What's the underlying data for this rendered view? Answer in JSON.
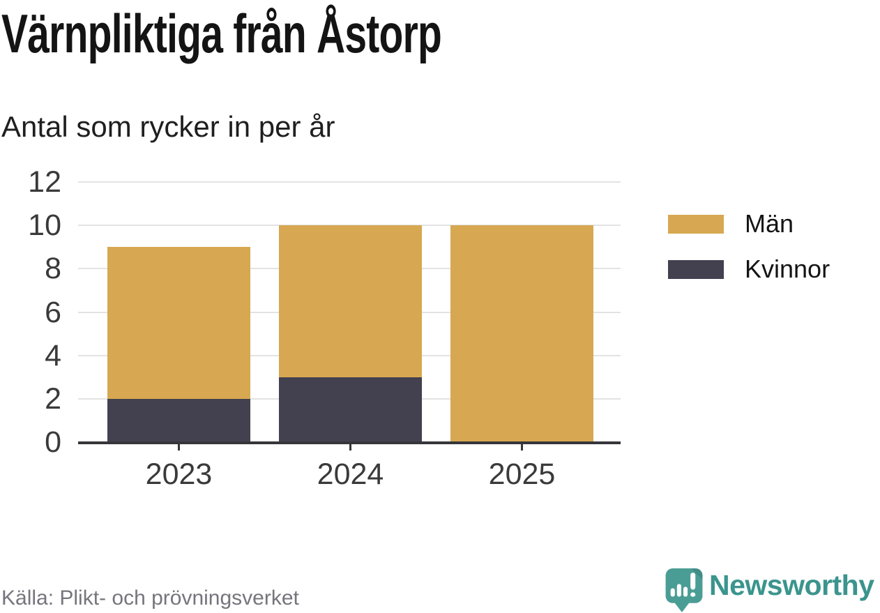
{
  "header": {
    "title": "Värnpliktiga från Åstorp",
    "subtitle": "Antal som rycker in per år"
  },
  "footer": {
    "source": "Källa: Plikt- och prövningsverket",
    "brand": "Newsworthy",
    "brand_icon": "newsworthy-speech-bubble-bar-chart-icon"
  },
  "colors": {
    "men": "#d7a851",
    "women": "#43404f",
    "grid": "#e3e3e3",
    "axis": "#36363a",
    "title_text": "#141414",
    "tick_text": "#3a3a3a",
    "source_text": "#75757d",
    "brand_teal": "#3b948d",
    "brand_icon_teal": "#4a9d95",
    "brand_icon_fold": "#3f8d86"
  },
  "chart_data": {
    "type": "bar",
    "stacked": true,
    "title": "Värnpliktiga från Åstorp",
    "subtitle": "Antal som rycker in per år",
    "categories": [
      "2023",
      "2024",
      "2025"
    ],
    "series": [
      {
        "name": "Män",
        "color": "#d7a851",
        "values": [
          7,
          7,
          10
        ]
      },
      {
        "name": "Kvinnor",
        "color": "#43404f",
        "values": [
          2,
          3,
          0
        ]
      }
    ],
    "stack_order_bottom_to_top": [
      "Kvinnor",
      "Män"
    ],
    "totals": [
      9,
      10,
      10
    ],
    "xlabel": "",
    "ylabel": "",
    "ylim": [
      0,
      12
    ],
    "yticks": [
      0,
      2,
      4,
      6,
      8,
      10,
      12
    ],
    "grid": true,
    "legend_position": "right",
    "legend_order": [
      "Män",
      "Kvinnor"
    ]
  }
}
